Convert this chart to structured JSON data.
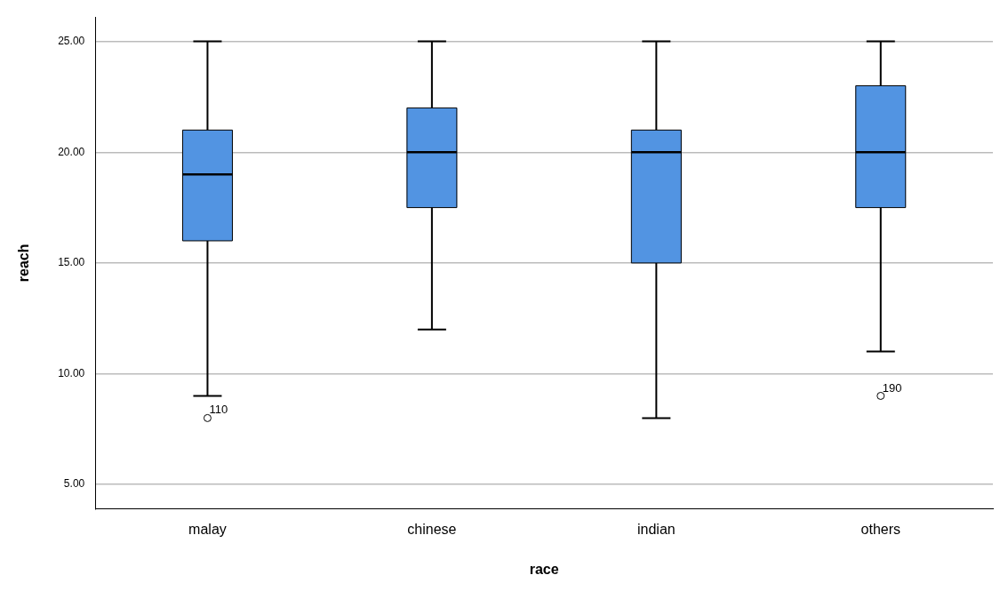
{
  "chart_data": {
    "type": "box",
    "xlabel": "race",
    "ylabel": "reach",
    "categories": [
      "malay",
      "chinese",
      "indian",
      "others"
    ],
    "series": [
      {
        "color": "#5294e2",
        "boxes": [
          {
            "low": 9,
            "q1": 16,
            "median": 19,
            "q3": 21,
            "high": 25,
            "outliers": [
              8
            ]
          },
          {
            "low": 12,
            "q1": 17.5,
            "median": 20,
            "q3": 22,
            "high": 25
          },
          {
            "low": 8,
            "q1": 15,
            "median": 20,
            "q3": 21,
            "high": 25
          },
          {
            "low": 11,
            "q1": 17.5,
            "median": 20,
            "q3": 23,
            "high": 25,
            "outliers": [
              9
            ]
          }
        ]
      }
    ],
    "ylim": [
      3.9,
      26.1
    ],
    "yticks": [
      {
        "value": 5,
        "label": "5.00"
      },
      {
        "value": 10,
        "label": "10.00"
      },
      {
        "value": 15,
        "label": "15.00"
      },
      {
        "value": 20,
        "label": "20.00"
      },
      {
        "value": 25,
        "label": "25.00"
      }
    ],
    "grid": "y",
    "legend": false,
    "annotations": [
      "110",
      "190"
    ]
  }
}
